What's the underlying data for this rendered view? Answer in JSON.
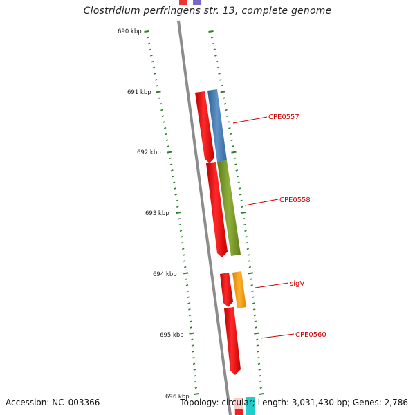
{
  "title": "Clostridium perfringens str. 13, complete genome",
  "accession": "Accession: NC_003366",
  "summary": "Topology: circular; Length: 3,031,430 bp; Genes: 2,786",
  "ticks": [
    "690 kbp",
    "691 kbp",
    "692 kbp",
    "693 kbp",
    "694 kbp",
    "695 kbp",
    "696 kbp"
  ],
  "genes": [
    {
      "name": "CPE0557",
      "color": "#4a7fb5"
    },
    {
      "name": "CPE0558",
      "color": "#7a9a2a"
    },
    {
      "name": "sigV",
      "color": "#f5a010"
    },
    {
      "name": "CPE0560",
      "color": "#ee0000"
    }
  ],
  "colors": {
    "backbone": "#8c8c8c",
    "tick": "#2e7d2e",
    "gene_strand": "#ee0000",
    "label": "#cc0000"
  }
}
